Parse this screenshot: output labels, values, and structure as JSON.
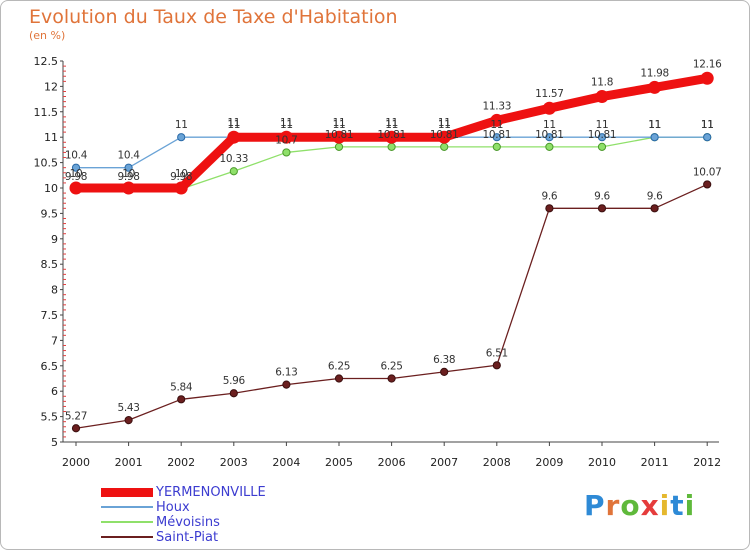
{
  "title": "Evolution du Taux de Taxe d'Habitation",
  "subtitle": "(en %)",
  "logo": {
    "text": "Proxiti",
    "letter_colors": [
      "#2e8ad6",
      "#e0743a",
      "#5fb93b",
      "#e53c3c",
      "#e5b82e",
      "#2e8ad6",
      "#5fb93b"
    ]
  },
  "chart_data": {
    "type": "line",
    "title": "Evolution du Taux de Taxe d'Habitation",
    "ylabel": "(en %)",
    "xlabel": "",
    "ylim": [
      5,
      12.5
    ],
    "yticks": [
      5,
      5.5,
      6,
      6.5,
      7,
      7.5,
      8,
      8.5,
      9,
      9.5,
      10,
      10.5,
      11,
      11.5,
      12,
      12.5
    ],
    "ytick_labels": [
      "5",
      "5.5",
      "6",
      "6.5",
      "7",
      "7.5",
      "8",
      "8.5",
      "9",
      "9.5",
      "10",
      "10.5",
      "11",
      "11.5",
      "12",
      "12.5"
    ],
    "categories": [
      "2000",
      "2001",
      "2002",
      "2003",
      "2004",
      "2005",
      "2006",
      "2007",
      "2008",
      "2009",
      "2010",
      "2011",
      "2012"
    ],
    "grid": false,
    "legend_position": "bottom-left",
    "series": [
      {
        "name": "Saint-Piat",
        "color": "#6b1f1f",
        "values": [
          5.27,
          5.43,
          5.84,
          5.96,
          6.13,
          6.25,
          6.25,
          6.38,
          6.51,
          9.6,
          9.6,
          9.6,
          10.07
        ],
        "labels": [
          "5.27",
          "5.43",
          "5.84",
          "5.96",
          "6.13",
          "6.25",
          "6.25",
          "6.38",
          "6.51",
          "9.6",
          "9.6",
          "9.6",
          "10.07"
        ]
      },
      {
        "name": "Mévoisins",
        "color": "#8fe06a",
        "values": [
          9.98,
          9.98,
          9.98,
          10.33,
          10.7,
          10.81,
          10.81,
          10.81,
          10.81,
          10.81,
          10.81,
          11,
          11
        ],
        "labels": [
          "9.98",
          "9.98",
          "9.98",
          "10.33",
          "10.7",
          "10.81",
          "10.81",
          "10.81",
          "10.81",
          "10.81",
          "10.81",
          "11",
          "11"
        ]
      },
      {
        "name": "Houx",
        "color": "#6aa3d6",
        "values": [
          10.4,
          10.4,
          11,
          11,
          11,
          11,
          11,
          11,
          11,
          11,
          11,
          11,
          11
        ],
        "labels": [
          "10.4",
          "10.4",
          "11",
          "11",
          "11",
          "11",
          "11",
          "11",
          "11",
          "11",
          "11",
          "11",
          "11"
        ]
      },
      {
        "name": "YERMENONVILLE",
        "color": "#ee1111",
        "values": [
          10,
          10,
          10,
          11,
          11,
          11,
          11,
          11,
          11.33,
          11.57,
          11.8,
          11.98,
          12.16
        ],
        "labels": [
          "10",
          "10",
          "10",
          "11",
          "11",
          "11",
          "11",
          "11",
          "11.33",
          "11.57",
          "11.8",
          "11.98",
          "12.16"
        ]
      }
    ],
    "legend": [
      {
        "name": "YERMENONVILLE",
        "color": "#ee1111",
        "weight": 9
      },
      {
        "name": "Houx",
        "color": "#6aa3d6",
        "weight": 2
      },
      {
        "name": "Mévoisins",
        "color": "#8fe06a",
        "weight": 2
      },
      {
        "name": "Saint-Piat",
        "color": "#6b1f1f",
        "weight": 2
      }
    ]
  }
}
